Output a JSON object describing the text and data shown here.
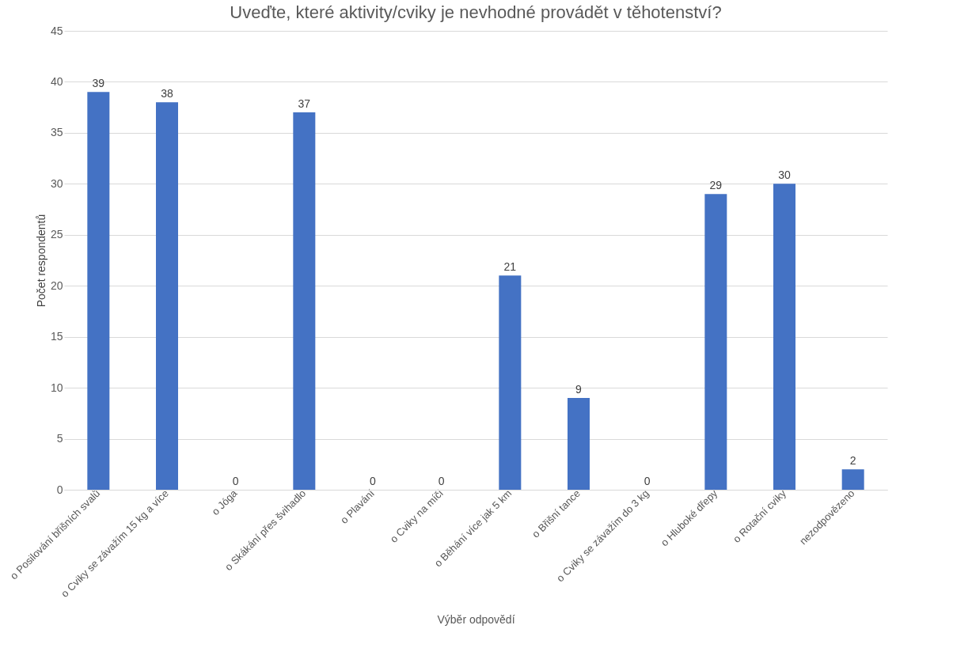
{
  "chart_data": {
    "type": "bar",
    "title": "Uveďte, které aktivity/cviky je nevhodné provádět v těhotenství?",
    "xlabel": "Výběr odpovědí",
    "ylabel": "Počet respondentů",
    "categories": [
      "o   Posilování břišních svalů",
      "o   Cviky se závažím 15 kg a více",
      "o   Jóga",
      "o   Skákání přes švihadlo",
      "o   Plavání",
      "o   Cviky na míči",
      "o   Běhání více jak 5 km",
      "o   Břišní tance",
      "o   Cviky se závažím do 3 kg",
      "o   Hluboké dřepy",
      "o   Rotační cviky",
      "nezodpovězeno"
    ],
    "values": [
      39,
      38,
      0,
      37,
      0,
      0,
      21,
      9,
      0,
      29,
      30,
      2
    ],
    "color": "#4472c4",
    "ylim": [
      0,
      45
    ],
    "yticks": [
      0,
      5,
      10,
      15,
      20,
      25,
      30,
      35,
      40,
      45
    ],
    "grid": "y",
    "data_labels": true
  }
}
